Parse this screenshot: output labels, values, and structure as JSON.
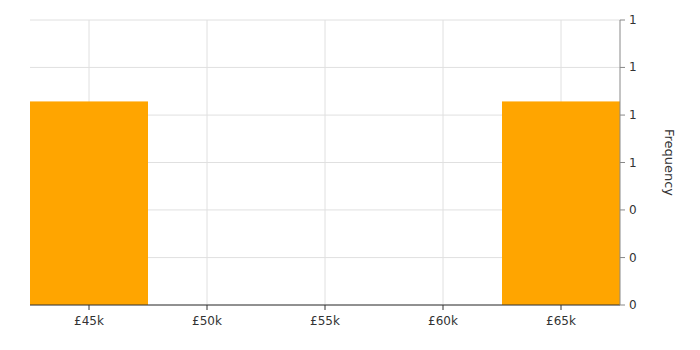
{
  "chart_data": {
    "type": "histogram",
    "ylabel": "Frequency",
    "bins": [
      42500,
      47500,
      52500,
      57500,
      62500,
      67500
    ],
    "values": [
      1,
      0,
      0,
      0,
      1
    ],
    "color": "#FFA500",
    "xlim": [
      42500,
      67500
    ],
    "xticks": [
      {
        "value": 45000,
        "label": "£45k"
      },
      {
        "value": 50000,
        "label": "£50k"
      },
      {
        "value": 55000,
        "label": "£55k"
      },
      {
        "value": 60000,
        "label": "£60k"
      },
      {
        "value": 65000,
        "label": "£65k"
      }
    ],
    "ylim": [
      0,
      1.4
    ],
    "yticks": [
      0,
      {
        "value": 0.233,
        "label": "0"
      },
      {
        "value": 0.467,
        "label": "0"
      },
      {
        "value": 0.7,
        "label": "1"
      },
      {
        "value": 0.933,
        "label": "1"
      },
      {
        "value": 1.167,
        "label": "1"
      },
      {
        "value": 1.4,
        "label": "1"
      }
    ],
    "grid": true
  }
}
